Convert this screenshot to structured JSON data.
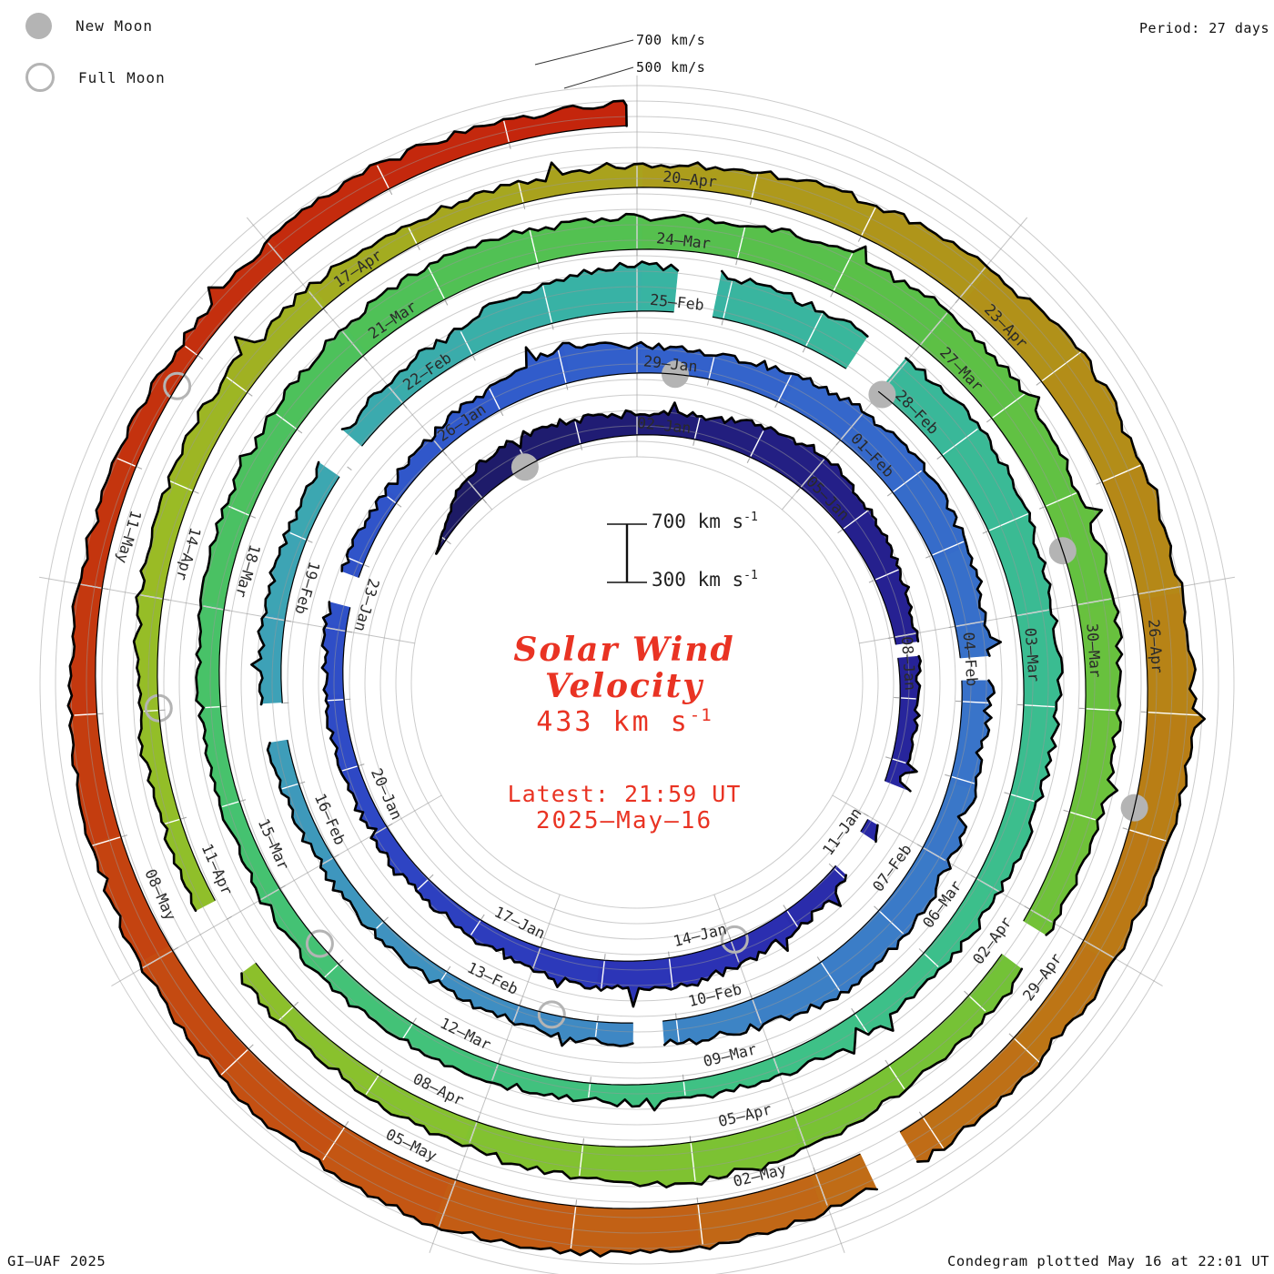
{
  "legend": {
    "new_moon": "New Moon",
    "full_moon": "Full Moon"
  },
  "period_label": "Period: 27 days",
  "credit": "GI–UAF 2025",
  "plotted_label": "Condegram plotted May 16 at 22:01 UT",
  "outer_scale": {
    "label_700": "700 km/s",
    "label_500": "500 km/s"
  },
  "scale_bar": {
    "top_text": "700 km s",
    "top_sup": "-1",
    "bottom_text": "300 km s",
    "bottom_sup": "-1"
  },
  "center": {
    "title_line1": "Solar Wind",
    "title_line2": "Velocity",
    "value_text": "433 km s",
    "value_sup": "-1",
    "latest_line": "Latest: 21:59 UT",
    "date_line": "2025–May–16"
  },
  "colors": {
    "moon_gray": "#b4b4b4",
    "red_text": "#e93323",
    "grid_gray": "#c4c4c4",
    "label_ink": "#2a2a2a",
    "edge_black": "#000000"
  },
  "chart_data": {
    "type": "area",
    "variant": "condegram-spiral (one turn = 27-day solar rotation, clockwise, radius grows with time)",
    "title": "Solar Wind Velocity",
    "units": "km/s",
    "period_days": 27,
    "baseline_kms": 300,
    "max_kms": 700,
    "grid_interval_kms": 100,
    "radial_line_every_deg": 40,
    "start_day_index": -4,
    "start_date": "2024-Dec-29",
    "end_date": "2025-May-16 21:59 UT",
    "latest_velocity_kms": 433,
    "labels_every_days": 3,
    "first_label_day": 0,
    "date_labels": [
      "02–Jan",
      "05–Jan",
      "08–Jan",
      "11–Jan",
      "14–Jan",
      "17–Jan",
      "20–Jan",
      "23–Jan",
      "26–Jan",
      "29–Jan",
      "01–Feb",
      "04–Feb",
      "07–Feb",
      "10–Feb",
      "13–Feb",
      "16–Feb",
      "19–Feb",
      "22–Feb",
      "25–Feb",
      "28–Feb",
      "03–Mar",
      "06–Mar",
      "09–Mar",
      "12–Mar",
      "15–Mar",
      "18–Mar",
      "21–Mar",
      "24–Mar",
      "27–Mar",
      "30–Mar",
      "02–Apr",
      "05–Apr",
      "08–Apr",
      "11–Apr",
      "14–Apr",
      "17–Apr",
      "20–Apr",
      "23–Apr",
      "26–Apr",
      "29–Apr",
      "02–May",
      "05–May",
      "08–May",
      "11–May"
    ],
    "daily_velocity_kms": [
      440,
      470,
      490,
      460,
      430,
      450,
      520,
      560,
      510,
      470,
      440,
      420,
      400,
      390,
      400,
      430,
      470,
      490,
      480,
      450,
      420,
      400,
      415,
      405,
      415,
      420,
      410,
      400,
      420,
      450,
      540,
      480,
      460,
      500,
      540,
      560,
      530,
      500,
      480,
      470,
      500,
      530,
      540,
      480,
      450,
      430,
      410,
      400,
      395,
      400,
      410,
      430,
      440,
      430,
      440,
      460,
      500,
      560,
      600,
      570,
      550,
      580,
      600,
      570,
      540,
      520,
      490,
      470,
      450,
      440,
      430,
      420,
      410,
      420,
      430,
      440,
      430,
      420,
      430,
      450,
      470,
      490,
      520,
      540,
      520,
      500,
      530,
      570,
      590,
      560,
      530,
      540,
      520,
      500,
      480,
      470,
      490,
      530,
      560,
      520,
      480,
      450,
      440,
      430,
      420,
      430,
      450,
      470,
      480,
      460,
      440,
      430,
      440,
      470,
      520,
      560,
      620,
      590,
      570,
      600,
      570,
      540,
      520,
      530,
      550,
      580,
      600,
      620,
      590,
      560,
      520,
      490,
      470,
      450,
      440,
      430,
      460,
      470,
      440
    ],
    "data_gaps_day_ranges": [
      [
        6.15,
        6.35
      ],
      [
        8.45,
        9.05
      ],
      [
        9.3,
        9.9
      ],
      [
        21.35,
        21.75
      ],
      [
        33.45,
        33.65
      ],
      [
        40.25,
        40.55
      ],
      [
        46.6,
        46.95
      ],
      [
        49.9,
        50.25
      ],
      [
        54.5,
        54.85
      ],
      [
        56.6,
        56.95
      ],
      [
        90.15,
        90.45
      ],
      [
        98.6,
        99.2
      ],
      [
        119.3,
        119.55
      ]
    ],
    "new_moon_days": [
      -2.06,
      27.53,
      57.03,
      86.46,
      115.81
    ],
    "full_moon_days": [
      11.94,
      41.58,
      71.29,
      101.02,
      130.71
    ],
    "color_stops": [
      [
        -4,
        "#1d1a62"
      ],
      [
        6,
        "#262195"
      ],
      [
        12,
        "#2b2fb2"
      ],
      [
        18,
        "#2e46c4"
      ],
      [
        24,
        "#3058cb"
      ],
      [
        30,
        "#3568cb"
      ],
      [
        36,
        "#3a78c8"
      ],
      [
        42,
        "#3f8cc3"
      ],
      [
        48,
        "#3da3b6"
      ],
      [
        54,
        "#38b3a3"
      ],
      [
        60,
        "#3abc92"
      ],
      [
        66,
        "#3ec186"
      ],
      [
        72,
        "#44c272"
      ],
      [
        78,
        "#4ec159"
      ],
      [
        84,
        "#5bc046"
      ],
      [
        90,
        "#71c238"
      ],
      [
        96,
        "#84c22f"
      ],
      [
        102,
        "#98bd26"
      ],
      [
        108,
        "#ab9f1c"
      ],
      [
        112,
        "#b28f18"
      ],
      [
        116,
        "#ba7b15"
      ],
      [
        120,
        "#c16a16"
      ],
      [
        124,
        "#c45312"
      ],
      [
        128,
        "#c43a0f"
      ],
      [
        135,
        "#c4230c"
      ]
    ]
  }
}
